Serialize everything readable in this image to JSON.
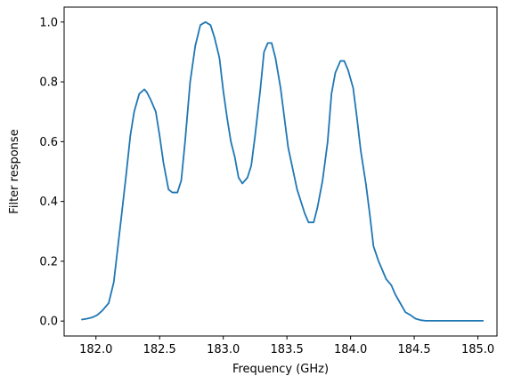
{
  "chart_data": {
    "type": "line",
    "title": "",
    "xlabel": "Frequency (GHz)",
    "ylabel": "Filter response",
    "xlim": [
      181.75,
      185.15
    ],
    "ylim": [
      -0.05,
      1.05
    ],
    "xticks": [
      "182.0",
      "182.5",
      "183.0",
      "183.5",
      "184.0",
      "184.5",
      "185.0"
    ],
    "yticks": [
      "0.0",
      "0.2",
      "0.4",
      "0.6",
      "0.8",
      "1.0"
    ],
    "grid": false,
    "legend": "none",
    "series": [
      {
        "color": "#1f77b4",
        "x": [
          181.89,
          181.93,
          181.97,
          182.01,
          182.05,
          182.1,
          182.14,
          182.17,
          182.2,
          182.24,
          182.27,
          182.3,
          182.34,
          182.38,
          182.4,
          182.43,
          182.47,
          182.5,
          182.53,
          182.57,
          182.6,
          182.64,
          182.67,
          182.7,
          182.74,
          182.78,
          182.82,
          182.86,
          182.9,
          182.93,
          182.97,
          183.0,
          183.03,
          183.06,
          183.09,
          183.12,
          183.15,
          183.19,
          183.22,
          183.25,
          183.29,
          183.32,
          183.35,
          183.38,
          183.41,
          183.45,
          183.48,
          183.51,
          183.55,
          183.58,
          183.61,
          183.64,
          183.67,
          183.71,
          183.74,
          183.78,
          183.82,
          183.85,
          183.88,
          183.92,
          183.95,
          183.98,
          184.02,
          184.05,
          184.08,
          184.12,
          184.15,
          184.18,
          184.22,
          184.25,
          184.28,
          184.32,
          184.35,
          184.39,
          184.43,
          184.47,
          184.51,
          184.55,
          184.59,
          184.63,
          184.67,
          184.72,
          184.76,
          184.8,
          184.84,
          184.88,
          184.92,
          184.96,
          185.0,
          185.04
        ],
        "y": [
          0.005,
          0.008,
          0.012,
          0.02,
          0.035,
          0.06,
          0.13,
          0.24,
          0.35,
          0.5,
          0.62,
          0.7,
          0.76,
          0.775,
          0.765,
          0.74,
          0.7,
          0.62,
          0.53,
          0.44,
          0.43,
          0.43,
          0.47,
          0.6,
          0.8,
          0.92,
          0.99,
          1.0,
          0.99,
          0.95,
          0.88,
          0.77,
          0.68,
          0.6,
          0.55,
          0.48,
          0.46,
          0.48,
          0.52,
          0.62,
          0.77,
          0.9,
          0.93,
          0.93,
          0.88,
          0.78,
          0.68,
          0.58,
          0.5,
          0.44,
          0.4,
          0.36,
          0.33,
          0.33,
          0.38,
          0.47,
          0.6,
          0.76,
          0.83,
          0.87,
          0.87,
          0.84,
          0.78,
          0.68,
          0.57,
          0.46,
          0.36,
          0.25,
          0.2,
          0.17,
          0.14,
          0.12,
          0.09,
          0.06,
          0.03,
          0.02,
          0.008,
          0.003,
          0.001,
          0.001,
          0.001,
          0.001,
          0.001,
          0.001,
          0.001,
          0.001,
          0.001,
          0.001,
          0.001,
          0.001
        ]
      }
    ]
  }
}
